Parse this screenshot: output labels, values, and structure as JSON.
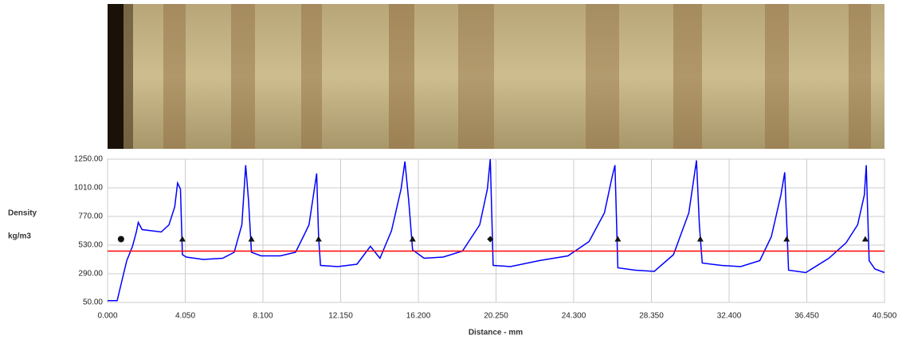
{
  "chart_data": {
    "type": "line",
    "y_label_line1": "Density",
    "y_label_line2": "kg/m3",
    "x_label": "Distance - mm",
    "x": [
      0,
      0.5,
      0.7,
      1.0,
      1.3,
      1.5,
      1.6,
      1.8,
      2.3,
      2.8,
      3.2,
      3.5,
      3.65,
      3.8,
      3.9,
      4.1,
      5.0,
      6.0,
      6.6,
      7.0,
      7.2,
      7.35,
      7.5,
      8.0,
      9.0,
      9.8,
      10.2,
      10.5,
      10.9,
      11.0,
      11.1,
      12.0,
      13.0,
      13.7,
      14.2,
      14.8,
      15.3,
      15.5,
      15.7,
      15.9,
      16.5,
      17.5,
      18.5,
      19.4,
      19.8,
      19.95,
      20.1,
      21.0,
      22.5,
      24.0,
      25.1,
      25.9,
      26.3,
      26.45,
      26.6,
      27.5,
      28.5,
      29.5,
      30.3,
      30.7,
      30.85,
      31.0,
      32.0,
      33.0,
      34.0,
      34.6,
      35.1,
      35.3,
      35.5,
      36.4,
      37.6,
      38.5,
      39.1,
      39.45,
      39.55,
      39.7,
      40.0,
      40.5
    ],
    "series": [
      {
        "color": "#0000ff",
        "values": [
          65,
          65,
          200,
          400,
          520,
          640,
          720,
          660,
          650,
          640,
          700,
          850,
          1050,
          1000,
          450,
          430,
          410,
          420,
          470,
          700,
          1200,
          900,
          470,
          440,
          440,
          470,
          600,
          700,
          1130,
          600,
          360,
          350,
          370,
          520,
          420,
          650,
          1000,
          1230,
          900,
          490,
          420,
          430,
          480,
          700,
          1000,
          1250,
          360,
          350,
          400,
          440,
          560,
          800,
          1100,
          1200,
          340,
          320,
          310,
          450,
          800,
          1240,
          700,
          380,
          360,
          350,
          400,
          600,
          950,
          1140,
          320,
          300,
          420,
          550,
          700,
          950,
          1200,
          400,
          330,
          300
        ]
      }
    ],
    "reference_line": {
      "value": 480,
      "color": "#ff0000"
    },
    "markers": [
      {
        "shape": "circle",
        "x": [
          0.7
        ],
        "y": [
          580
        ]
      },
      {
        "shape": "triangle",
        "x": [
          3.9,
          7.5,
          11.0,
          15.9,
          26.6,
          30.9,
          35.4,
          39.5
        ],
        "y": [
          580,
          580,
          580,
          580,
          580,
          580,
          580,
          580
        ]
      },
      {
        "shape": "diamond",
        "x": [
          19.95
        ],
        "y": [
          580
        ]
      }
    ],
    "xlim": [
      0,
      40.5
    ],
    "ylim": [
      50,
      1250
    ],
    "xticks": [
      {
        "value": 0,
        "label": "0.000"
      },
      {
        "value": 4.05,
        "label": "4.050"
      },
      {
        "value": 8.1,
        "label": "8.100"
      },
      {
        "value": 12.15,
        "label": "12.150"
      },
      {
        "value": 16.2,
        "label": "16.200"
      },
      {
        "value": 20.25,
        "label": "20.250"
      },
      {
        "value": 24.3,
        "label": "24.300"
      },
      {
        "value": 28.35,
        "label": "28.350"
      },
      {
        "value": 32.4,
        "label": "32.400"
      },
      {
        "value": 36.45,
        "label": "36.450"
      },
      {
        "value": 40.5,
        "label": "40.500"
      }
    ],
    "yticks": [
      {
        "value": 50,
        "label": "50.00"
      },
      {
        "value": 290,
        "label": "290.00"
      },
      {
        "value": 530,
        "label": "530.00"
      },
      {
        "value": 770,
        "label": "770.00"
      },
      {
        "value": 1010,
        "label": "1010.00"
      },
      {
        "value": 1250,
        "label": "1250.00"
      }
    ],
    "grid": true
  }
}
